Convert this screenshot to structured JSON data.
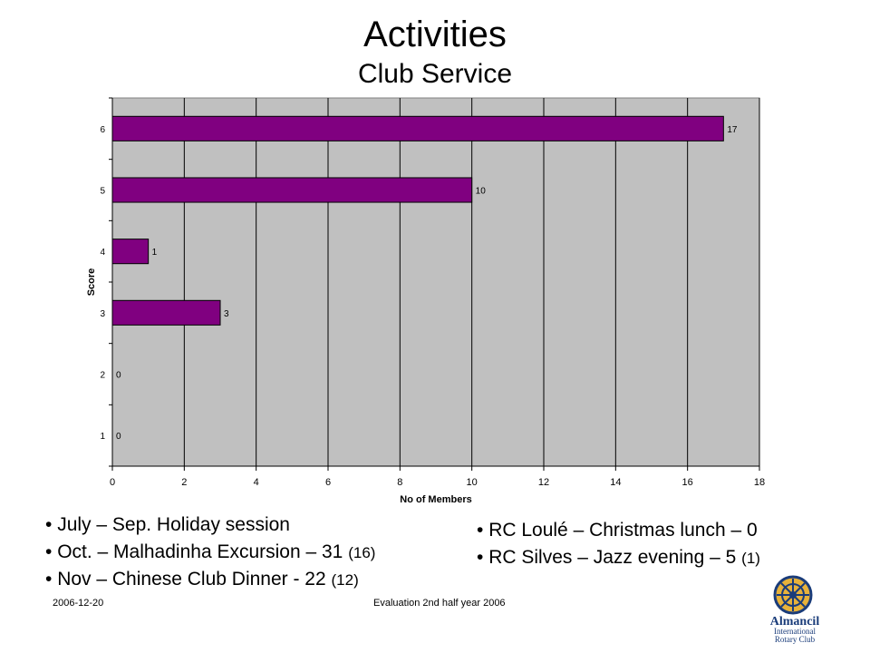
{
  "title": "Activities",
  "subtitle": "Club Service",
  "chart_data": {
    "type": "bar",
    "orientation": "horizontal",
    "categories": [
      "1",
      "2",
      "3",
      "4",
      "5",
      "6"
    ],
    "values": [
      0,
      0,
      3,
      1,
      10,
      17
    ],
    "xlabel": "No of Members",
    "ylabel": "Score",
    "xlim": [
      0,
      18
    ],
    "xticks": [
      "0",
      "2",
      "4",
      "6",
      "8",
      "10",
      "12",
      "14",
      "16",
      "18"
    ],
    "grid": true,
    "bar_color": "#800080",
    "plot_background": "#c0c0c0"
  },
  "bullets_left": [
    {
      "text": "July – Sep. Holiday session",
      "note": ""
    },
    {
      "text": "Oct. – Malhadinha Excursion  – 31 ",
      "note": "(16)"
    },
    {
      "text": "Nov – Chinese Club Dinner    - 22 ",
      "note": "(12)"
    }
  ],
  "bullets_right": [
    {
      "text": "RC Loulé – Christmas lunch – 0",
      "note": ""
    },
    {
      "text": "RC Silves – Jazz evening     – 5 ",
      "note": "(1)"
    }
  ],
  "footer": {
    "date": "2006-12-20",
    "caption": "Evaluation 2nd half year 2006"
  },
  "logo": {
    "line1": "Almancil",
    "line2": "International",
    "line3": "Rotary Club",
    "icon": "rotary-wheel-icon"
  }
}
